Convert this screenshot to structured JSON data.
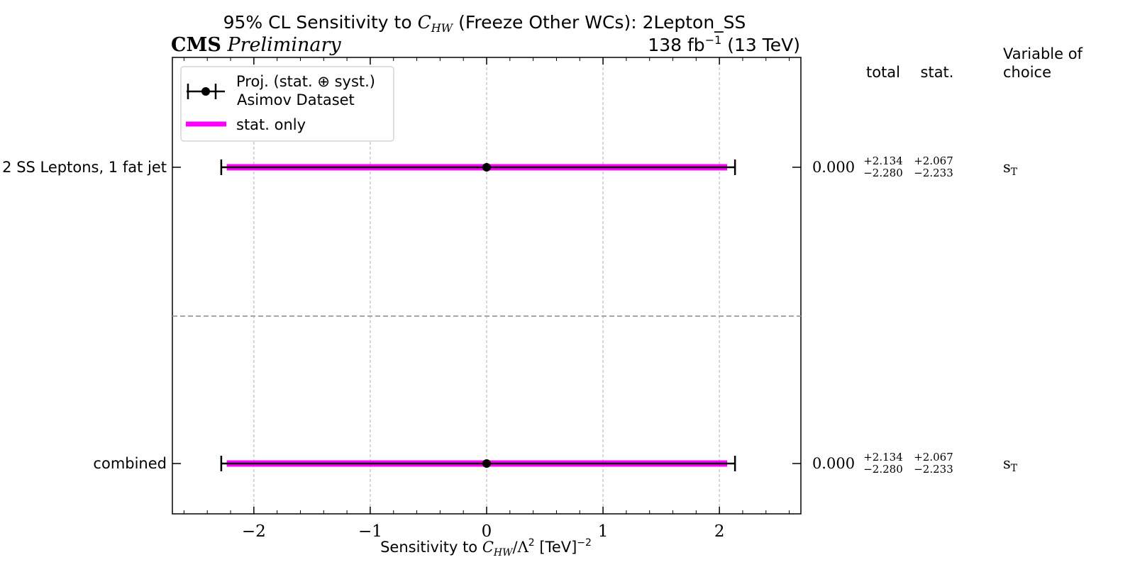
{
  "chart_data": {
    "type": "scatter",
    "title_prefix": "95% CL Sensitivity to ",
    "title_var": "C",
    "title_var_sub": "HW",
    "title_suffix": " (Freeze Other WCs): 2Lepton_SS",
    "experiment": "CMS",
    "experiment_status": "Preliminary",
    "lumi_prefix": "138 fb",
    "lumi_exp": "−1",
    "lumi_suffix": " (13 TeV)",
    "xlabel_prefix": "Sensitivity to ",
    "xlabel_var": "C",
    "xlabel_var_sub": "HW",
    "xlabel_mid": "/Λ",
    "xlabel_mid_exp": "2",
    "xlabel_suffix": " [TeV]",
    "xlabel_suffix_exp": "−2",
    "xlim": [
      -2.7,
      2.7
    ],
    "x_ticks": [
      -2,
      -1,
      0,
      1,
      2
    ],
    "x_tick_labels": [
      "−2",
      "−1",
      "0",
      "1",
      "2"
    ],
    "grid": "x",
    "legend_position": "top-left",
    "legend": {
      "proj_line1": "Proj. (stat. ⊕ syst.)",
      "proj_line2": "Asimov Dataset",
      "stat": "stat. only"
    },
    "stat_color": "#ff00ff",
    "total_color": "#000000",
    "table_headers": {
      "total": "total",
      "stat": "stat.",
      "variable_line1": "Variable of",
      "variable_line2": "choice"
    },
    "rows": [
      {
        "label": "2 SS Leptons, 1 fat jet",
        "central": 0.0,
        "central_text": "0.000",
        "total_up": 2.134,
        "total_down": -2.28,
        "stat_up": 2.067,
        "stat_down": -2.233,
        "total_up_text": "+2.134",
        "total_down_text": "−2.280",
        "stat_up_text": "+2.067",
        "stat_down_text": "−2.233",
        "variable": "s",
        "variable_sub": "T"
      },
      {
        "label": "combined",
        "central": 0.0,
        "central_text": "0.000",
        "total_up": 2.134,
        "total_down": -2.28,
        "stat_up": 2.067,
        "stat_down": -2.233,
        "total_up_text": "+2.134",
        "total_down_text": "−2.280",
        "stat_up_text": "+2.067",
        "stat_down_text": "−2.233",
        "variable": "s",
        "variable_sub": "T"
      }
    ]
  }
}
